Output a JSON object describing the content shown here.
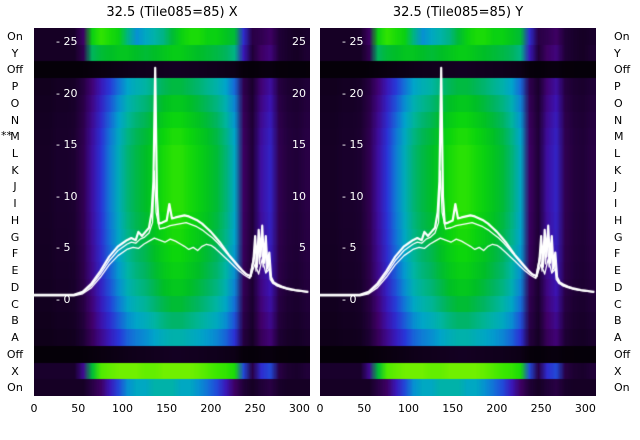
{
  "figure": {
    "panels": [
      {
        "title": "32.5 (Tile085=85) X"
      },
      {
        "title": "32.5 (Tile085=85) Y"
      }
    ],
    "row_labels": [
      "On",
      "Y",
      "Off",
      "P",
      "O",
      "N",
      "M",
      "L",
      "K",
      "J",
      "I",
      "H",
      "G",
      "F",
      "E",
      "D",
      "C",
      "B",
      "A",
      "Off",
      "X",
      "On"
    ],
    "row_marker": {
      "text": "**",
      "aligned_row": "M"
    },
    "y_ticks": [
      {
        "label": "- 25",
        "value": 25
      },
      {
        "label": "- 20",
        "value": 20
      },
      {
        "label": "- 15",
        "value": 15
      },
      {
        "label": "- 10",
        "value": 10
      },
      {
        "label": "- 5",
        "value": 5
      },
      {
        "label": "- 0",
        "value": 0
      }
    ],
    "y_ticks_right": [
      {
        "label": "25",
        "value": 25
      },
      {
        "label": "20",
        "value": 20
      },
      {
        "label": "15",
        "value": 15
      },
      {
        "label": "10",
        "value": 10
      },
      {
        "label": "5",
        "value": 5
      }
    ],
    "x_ticks": [
      {
        "label": "0",
        "value": 0
      },
      {
        "label": "50",
        "value": 50
      },
      {
        "label": "100",
        "value": 100
      },
      {
        "label": "150",
        "value": 150
      },
      {
        "label": "200",
        "value": 200
      },
      {
        "label": "250",
        "value": 250
      },
      {
        "label": "300",
        "value": 300
      }
    ]
  },
  "chart_data": {
    "type": "heatmap",
    "title_left": "32.5 (Tile085=85) X",
    "title_right": "32.5 (Tile085=85) Y",
    "x_axis": {
      "min": 0,
      "max": 312,
      "ticks": [
        0,
        50,
        100,
        150,
        200,
        250,
        300
      ]
    },
    "y_axis": {
      "min": 0,
      "max": 25,
      "ticks": [
        0,
        5,
        10,
        15,
        20,
        25
      ]
    },
    "row_channels": [
      "On",
      "Y",
      "Off",
      "P",
      "O",
      "N",
      "M",
      "L",
      "K",
      "J",
      "I",
      "H",
      "G",
      "F",
      "E",
      "D",
      "C",
      "B",
      "A",
      "Off",
      "X",
      "On"
    ],
    "colormap": [
      {
        "t": 0.0,
        "color": "#040006"
      },
      {
        "t": 0.08,
        "color": "#200038"
      },
      {
        "t": 0.16,
        "color": "#42006a"
      },
      {
        "t": 0.24,
        "color": "#3c14b4"
      },
      {
        "t": 0.32,
        "color": "#2a34d8"
      },
      {
        "t": 0.4,
        "color": "#1470d8"
      },
      {
        "t": 0.48,
        "color": "#00a4cc"
      },
      {
        "t": 0.56,
        "color": "#00b4a4"
      },
      {
        "t": 0.64,
        "color": "#00b464"
      },
      {
        "t": 0.72,
        "color": "#00be28"
      },
      {
        "t": 0.82,
        "color": "#0cd60c"
      },
      {
        "t": 0.92,
        "color": "#3ce800"
      },
      {
        "t": 1.0,
        "color": "#70f000"
      }
    ],
    "heatmap": {
      "x_start": 0,
      "x_step": 10,
      "col_profile": [
        0.05,
        0.05,
        0.06,
        0.06,
        0.07,
        0.12,
        0.22,
        0.32,
        0.42,
        0.52,
        0.62,
        0.68,
        0.72,
        0.78,
        0.84,
        0.88,
        0.88,
        0.84,
        0.8,
        0.75,
        0.7,
        0.62,
        0.5,
        0.15,
        0.08,
        0.22,
        0.28,
        0.12,
        0.09,
        0.08,
        0.1
      ],
      "rows": [
        {
          "label": "On",
          "values": [
            0.05,
            0.05,
            0.05,
            0.05,
            0.06,
            0.15,
            0.8,
            0.9,
            0.85,
            0.8,
            0.6,
            0.45,
            0.5,
            0.55,
            0.6,
            0.7,
            0.8,
            0.85,
            0.85,
            0.8,
            0.8,
            0.75,
            0.7,
            0.3,
            0.1,
            0.12,
            0.15,
            0.08,
            0.06,
            0.05,
            0.06
          ]
        },
        {
          "label": "Y",
          "values": [
            0.05,
            0.05,
            0.05,
            0.05,
            0.05,
            0.12,
            0.65,
            0.7,
            0.72,
            0.75,
            0.75,
            0.72,
            0.7,
            0.72,
            0.75,
            0.78,
            0.78,
            0.75,
            0.72,
            0.7,
            0.68,
            0.65,
            0.6,
            0.25,
            0.08,
            0.15,
            0.18,
            0.08,
            0.06,
            0.05,
            0.07
          ]
        },
        {
          "label": "Off",
          "gain": 0.05
        },
        {
          "label": "P",
          "gain": 0.78
        },
        {
          "label": "O",
          "gain": 0.86
        },
        {
          "label": "N",
          "gain": 0.92
        },
        {
          "label": "M",
          "gain": 0.97
        },
        {
          "label": "L",
          "gain": 1.0
        },
        {
          "label": "K",
          "gain": 1.0
        },
        {
          "label": "J",
          "gain": 1.0
        },
        {
          "label": "I",
          "gain": 1.0
        },
        {
          "label": "H",
          "gain": 0.98
        },
        {
          "label": "G",
          "gain": 0.96
        },
        {
          "label": "F",
          "gain": 0.93
        },
        {
          "label": "E",
          "gain": 0.9
        },
        {
          "label": "D",
          "gain": 0.86
        },
        {
          "label": "C",
          "gain": 0.8
        },
        {
          "label": "B",
          "gain": 0.72
        },
        {
          "label": "A",
          "gain": 0.62
        },
        {
          "label": "Off",
          "gain": 0.05
        },
        {
          "label": "X",
          "values": [
            0.06,
            0.06,
            0.06,
            0.06,
            0.06,
            0.2,
            0.7,
            0.95,
            0.98,
            1.0,
            1.0,
            1.0,
            0.98,
            0.98,
            1.0,
            1.0,
            1.0,
            1.0,
            0.98,
            0.95,
            0.92,
            0.9,
            0.85,
            0.35,
            0.1,
            0.3,
            0.35,
            0.1,
            0.07,
            0.06,
            0.08
          ]
        },
        {
          "label": "On",
          "values": [
            0.05,
            0.05,
            0.05,
            0.05,
            0.05,
            0.05,
            0.1,
            0.15,
            0.25,
            0.35,
            0.45,
            0.5,
            0.5,
            0.55,
            0.55,
            0.55,
            0.5,
            0.5,
            0.45,
            0.4,
            0.35,
            0.25,
            0.15,
            0.08,
            0.05,
            0.08,
            0.1,
            0.06,
            0.05,
            0.05,
            0.05
          ]
        }
      ]
    },
    "lines": [
      {
        "name": "trace-main",
        "color": "#ffffff",
        "width": 2.2,
        "points": [
          [
            0,
            0.5
          ],
          [
            30,
            0.5
          ],
          [
            45,
            0.5
          ],
          [
            55,
            0.8
          ],
          [
            65,
            1.6
          ],
          [
            75,
            2.8
          ],
          [
            85,
            4.2
          ],
          [
            95,
            5.2
          ],
          [
            100,
            5.5
          ],
          [
            105,
            5.8
          ],
          [
            110,
            6.0
          ],
          [
            115,
            5.8
          ],
          [
            118,
            6.6
          ],
          [
            122,
            6.2
          ],
          [
            126,
            6.6
          ],
          [
            130,
            7.0
          ],
          [
            133,
            8.5
          ],
          [
            135,
            11.5
          ],
          [
            137,
            22.5
          ],
          [
            139,
            10.0
          ],
          [
            141,
            7.4
          ],
          [
            145,
            7.5
          ],
          [
            150,
            7.7
          ],
          [
            153,
            9.3
          ],
          [
            156,
            7.9
          ],
          [
            160,
            8.0
          ],
          [
            165,
            8.1
          ],
          [
            170,
            8.2
          ],
          [
            175,
            8.1
          ],
          [
            180,
            7.9
          ],
          [
            185,
            7.7
          ],
          [
            190,
            7.4
          ],
          [
            195,
            7.0
          ],
          [
            200,
            6.6
          ],
          [
            205,
            6.1
          ],
          [
            210,
            5.6
          ],
          [
            215,
            5.0
          ],
          [
            220,
            4.4
          ],
          [
            225,
            3.9
          ],
          [
            230,
            3.4
          ],
          [
            235,
            2.9
          ],
          [
            240,
            2.5
          ],
          [
            245,
            2.3
          ],
          [
            248,
            3.8
          ],
          [
            250,
            6.2
          ],
          [
            252,
            3.2
          ],
          [
            254,
            6.8
          ],
          [
            256,
            4.2
          ],
          [
            258,
            7.2
          ],
          [
            260,
            3.6
          ],
          [
            262,
            6.2
          ],
          [
            264,
            3.1
          ],
          [
            266,
            4.6
          ],
          [
            268,
            2.2
          ],
          [
            271,
            1.7
          ],
          [
            275,
            1.5
          ],
          [
            280,
            1.3
          ],
          [
            285,
            1.15
          ],
          [
            290,
            1.05
          ],
          [
            295,
            0.95
          ],
          [
            300,
            0.9
          ],
          [
            305,
            0.85
          ],
          [
            310,
            0.8
          ]
        ]
      },
      {
        "name": "trace-2",
        "color": "#ffffff",
        "width": 1.3,
        "points": [
          [
            0,
            0.45
          ],
          [
            45,
            0.45
          ],
          [
            55,
            0.7
          ],
          [
            65,
            1.4
          ],
          [
            75,
            2.5
          ],
          [
            85,
            3.8
          ],
          [
            95,
            4.8
          ],
          [
            105,
            5.4
          ],
          [
            110,
            5.6
          ],
          [
            115,
            5.5
          ],
          [
            120,
            5.9
          ],
          [
            125,
            6.1
          ],
          [
            130,
            6.5
          ],
          [
            134,
            7.5
          ],
          [
            136,
            12.5
          ],
          [
            138,
            8.5
          ],
          [
            142,
            6.9
          ],
          [
            148,
            7.0
          ],
          [
            154,
            7.2
          ],
          [
            160,
            7.3
          ],
          [
            166,
            7.4
          ],
          [
            172,
            7.5
          ],
          [
            178,
            7.3
          ],
          [
            184,
            7.1
          ],
          [
            190,
            6.8
          ],
          [
            196,
            6.4
          ],
          [
            202,
            6.0
          ],
          [
            208,
            5.5
          ],
          [
            214,
            4.9
          ],
          [
            220,
            4.3
          ],
          [
            226,
            3.7
          ],
          [
            232,
            3.1
          ],
          [
            238,
            2.6
          ],
          [
            244,
            2.3
          ],
          [
            249,
            4.5
          ],
          [
            251,
            2.8
          ],
          [
            253,
            5.5
          ],
          [
            255,
            3.5
          ],
          [
            257,
            6.0
          ],
          [
            259,
            3.2
          ],
          [
            261,
            5.2
          ],
          [
            263,
            2.8
          ],
          [
            265,
            3.8
          ],
          [
            267,
            2.0
          ],
          [
            270,
            1.6
          ],
          [
            276,
            1.35
          ],
          [
            282,
            1.2
          ],
          [
            288,
            1.05
          ],
          [
            294,
            0.95
          ],
          [
            300,
            0.88
          ],
          [
            310,
            0.78
          ]
        ]
      },
      {
        "name": "trace-3",
        "color": "#ffffff",
        "width": 1.3,
        "points": [
          [
            0,
            0.4
          ],
          [
            45,
            0.4
          ],
          [
            55,
            0.6
          ],
          [
            65,
            1.2
          ],
          [
            75,
            2.2
          ],
          [
            85,
            3.4
          ],
          [
            95,
            4.3
          ],
          [
            105,
            4.9
          ],
          [
            112,
            5.1
          ],
          [
            118,
            5.0
          ],
          [
            124,
            5.4
          ],
          [
            130,
            5.7
          ],
          [
            136,
            6.0
          ],
          [
            142,
            5.8
          ],
          [
            148,
            5.6
          ],
          [
            154,
            5.9
          ],
          [
            160,
            5.7
          ],
          [
            166,
            5.4
          ],
          [
            170,
            5.2
          ],
          [
            175,
            4.9
          ],
          [
            180,
            5.1
          ],
          [
            185,
            4.8
          ],
          [
            190,
            5.2
          ],
          [
            195,
            5.4
          ],
          [
            200,
            5.3
          ],
          [
            205,
            5.0
          ],
          [
            210,
            4.6
          ],
          [
            215,
            4.2
          ],
          [
            220,
            3.8
          ],
          [
            226,
            3.3
          ],
          [
            232,
            2.8
          ],
          [
            238,
            2.4
          ],
          [
            244,
            2.1
          ],
          [
            250,
            3.5
          ],
          [
            254,
            2.5
          ],
          [
            258,
            4.0
          ],
          [
            262,
            2.6
          ],
          [
            266,
            3.0
          ],
          [
            269,
            1.8
          ],
          [
            274,
            1.4
          ],
          [
            280,
            1.2
          ],
          [
            288,
            1.0
          ],
          [
            296,
            0.9
          ],
          [
            304,
            0.82
          ],
          [
            310,
            0.75
          ]
        ]
      }
    ]
  }
}
